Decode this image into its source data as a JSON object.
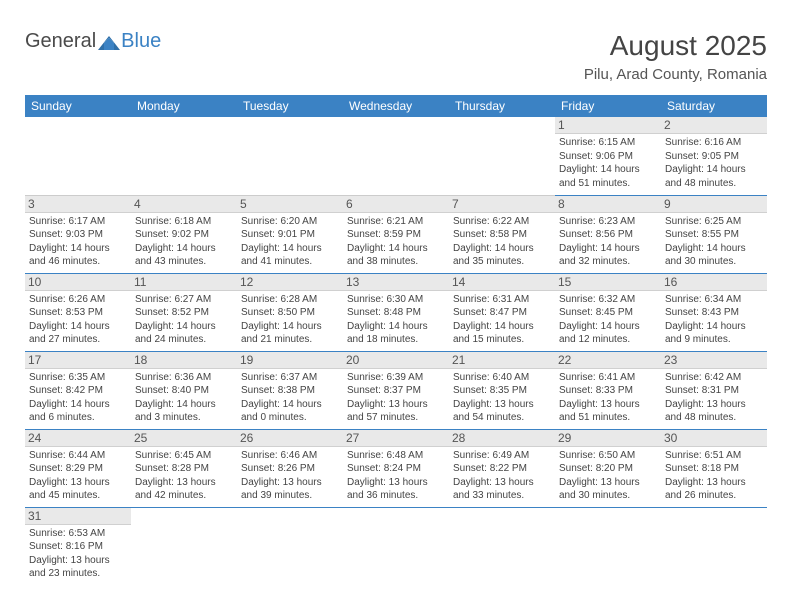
{
  "logo": {
    "text1": "General",
    "text2": "Blue",
    "color_general": "#4a4a4a",
    "color_blue": "#3b82c4"
  },
  "title": "August 2025",
  "location": "Pilu, Arad County, Romania",
  "header_bg": "#3b82c4",
  "weekdays": [
    "Sunday",
    "Monday",
    "Tuesday",
    "Wednesday",
    "Thursday",
    "Friday",
    "Saturday"
  ],
  "days": {
    "1": {
      "sunrise": "6:15 AM",
      "sunset": "9:06 PM",
      "daylight": "14 hours and 51 minutes."
    },
    "2": {
      "sunrise": "6:16 AM",
      "sunset": "9:05 PM",
      "daylight": "14 hours and 48 minutes."
    },
    "3": {
      "sunrise": "6:17 AM",
      "sunset": "9:03 PM",
      "daylight": "14 hours and 46 minutes."
    },
    "4": {
      "sunrise": "6:18 AM",
      "sunset": "9:02 PM",
      "daylight": "14 hours and 43 minutes."
    },
    "5": {
      "sunrise": "6:20 AM",
      "sunset": "9:01 PM",
      "daylight": "14 hours and 41 minutes."
    },
    "6": {
      "sunrise": "6:21 AM",
      "sunset": "8:59 PM",
      "daylight": "14 hours and 38 minutes."
    },
    "7": {
      "sunrise": "6:22 AM",
      "sunset": "8:58 PM",
      "daylight": "14 hours and 35 minutes."
    },
    "8": {
      "sunrise": "6:23 AM",
      "sunset": "8:56 PM",
      "daylight": "14 hours and 32 minutes."
    },
    "9": {
      "sunrise": "6:25 AM",
      "sunset": "8:55 PM",
      "daylight": "14 hours and 30 minutes."
    },
    "10": {
      "sunrise": "6:26 AM",
      "sunset": "8:53 PM",
      "daylight": "14 hours and 27 minutes."
    },
    "11": {
      "sunrise": "6:27 AM",
      "sunset": "8:52 PM",
      "daylight": "14 hours and 24 minutes."
    },
    "12": {
      "sunrise": "6:28 AM",
      "sunset": "8:50 PM",
      "daylight": "14 hours and 21 minutes."
    },
    "13": {
      "sunrise": "6:30 AM",
      "sunset": "8:48 PM",
      "daylight": "14 hours and 18 minutes."
    },
    "14": {
      "sunrise": "6:31 AM",
      "sunset": "8:47 PM",
      "daylight": "14 hours and 15 minutes."
    },
    "15": {
      "sunrise": "6:32 AM",
      "sunset": "8:45 PM",
      "daylight": "14 hours and 12 minutes."
    },
    "16": {
      "sunrise": "6:34 AM",
      "sunset": "8:43 PM",
      "daylight": "14 hours and 9 minutes."
    },
    "17": {
      "sunrise": "6:35 AM",
      "sunset": "8:42 PM",
      "daylight": "14 hours and 6 minutes."
    },
    "18": {
      "sunrise": "6:36 AM",
      "sunset": "8:40 PM",
      "daylight": "14 hours and 3 minutes."
    },
    "19": {
      "sunrise": "6:37 AM",
      "sunset": "8:38 PM",
      "daylight": "14 hours and 0 minutes."
    },
    "20": {
      "sunrise": "6:39 AM",
      "sunset": "8:37 PM",
      "daylight": "13 hours and 57 minutes."
    },
    "21": {
      "sunrise": "6:40 AM",
      "sunset": "8:35 PM",
      "daylight": "13 hours and 54 minutes."
    },
    "22": {
      "sunrise": "6:41 AM",
      "sunset": "8:33 PM",
      "daylight": "13 hours and 51 minutes."
    },
    "23": {
      "sunrise": "6:42 AM",
      "sunset": "8:31 PM",
      "daylight": "13 hours and 48 minutes."
    },
    "24": {
      "sunrise": "6:44 AM",
      "sunset": "8:29 PM",
      "daylight": "13 hours and 45 minutes."
    },
    "25": {
      "sunrise": "6:45 AM",
      "sunset": "8:28 PM",
      "daylight": "13 hours and 42 minutes."
    },
    "26": {
      "sunrise": "6:46 AM",
      "sunset": "8:26 PM",
      "daylight": "13 hours and 39 minutes."
    },
    "27": {
      "sunrise": "6:48 AM",
      "sunset": "8:24 PM",
      "daylight": "13 hours and 36 minutes."
    },
    "28": {
      "sunrise": "6:49 AM",
      "sunset": "8:22 PM",
      "daylight": "13 hours and 33 minutes."
    },
    "29": {
      "sunrise": "6:50 AM",
      "sunset": "8:20 PM",
      "daylight": "13 hours and 30 minutes."
    },
    "30": {
      "sunrise": "6:51 AM",
      "sunset": "8:18 PM",
      "daylight": "13 hours and 26 minutes."
    },
    "31": {
      "sunrise": "6:53 AM",
      "sunset": "8:16 PM",
      "daylight": "13 hours and 23 minutes."
    }
  },
  "labels": {
    "sunrise": "Sunrise:",
    "sunset": "Sunset:",
    "daylight": "Daylight:"
  },
  "layout": [
    [
      null,
      null,
      null,
      null,
      null,
      "1",
      "2"
    ],
    [
      "3",
      "4",
      "5",
      "6",
      "7",
      "8",
      "9"
    ],
    [
      "10",
      "11",
      "12",
      "13",
      "14",
      "15",
      "16"
    ],
    [
      "17",
      "18",
      "19",
      "20",
      "21",
      "22",
      "23"
    ],
    [
      "24",
      "25",
      "26",
      "27",
      "28",
      "29",
      "30"
    ],
    [
      "31",
      null,
      null,
      null,
      null,
      null,
      null
    ]
  ],
  "style": {
    "daynum_bg": "#e9e9e9",
    "border_color": "#3b82c4",
    "font_family": "Arial",
    "info_fontsize": 10,
    "header_fontsize": 12,
    "title_fontsize": 28,
    "location_fontsize": 15
  }
}
